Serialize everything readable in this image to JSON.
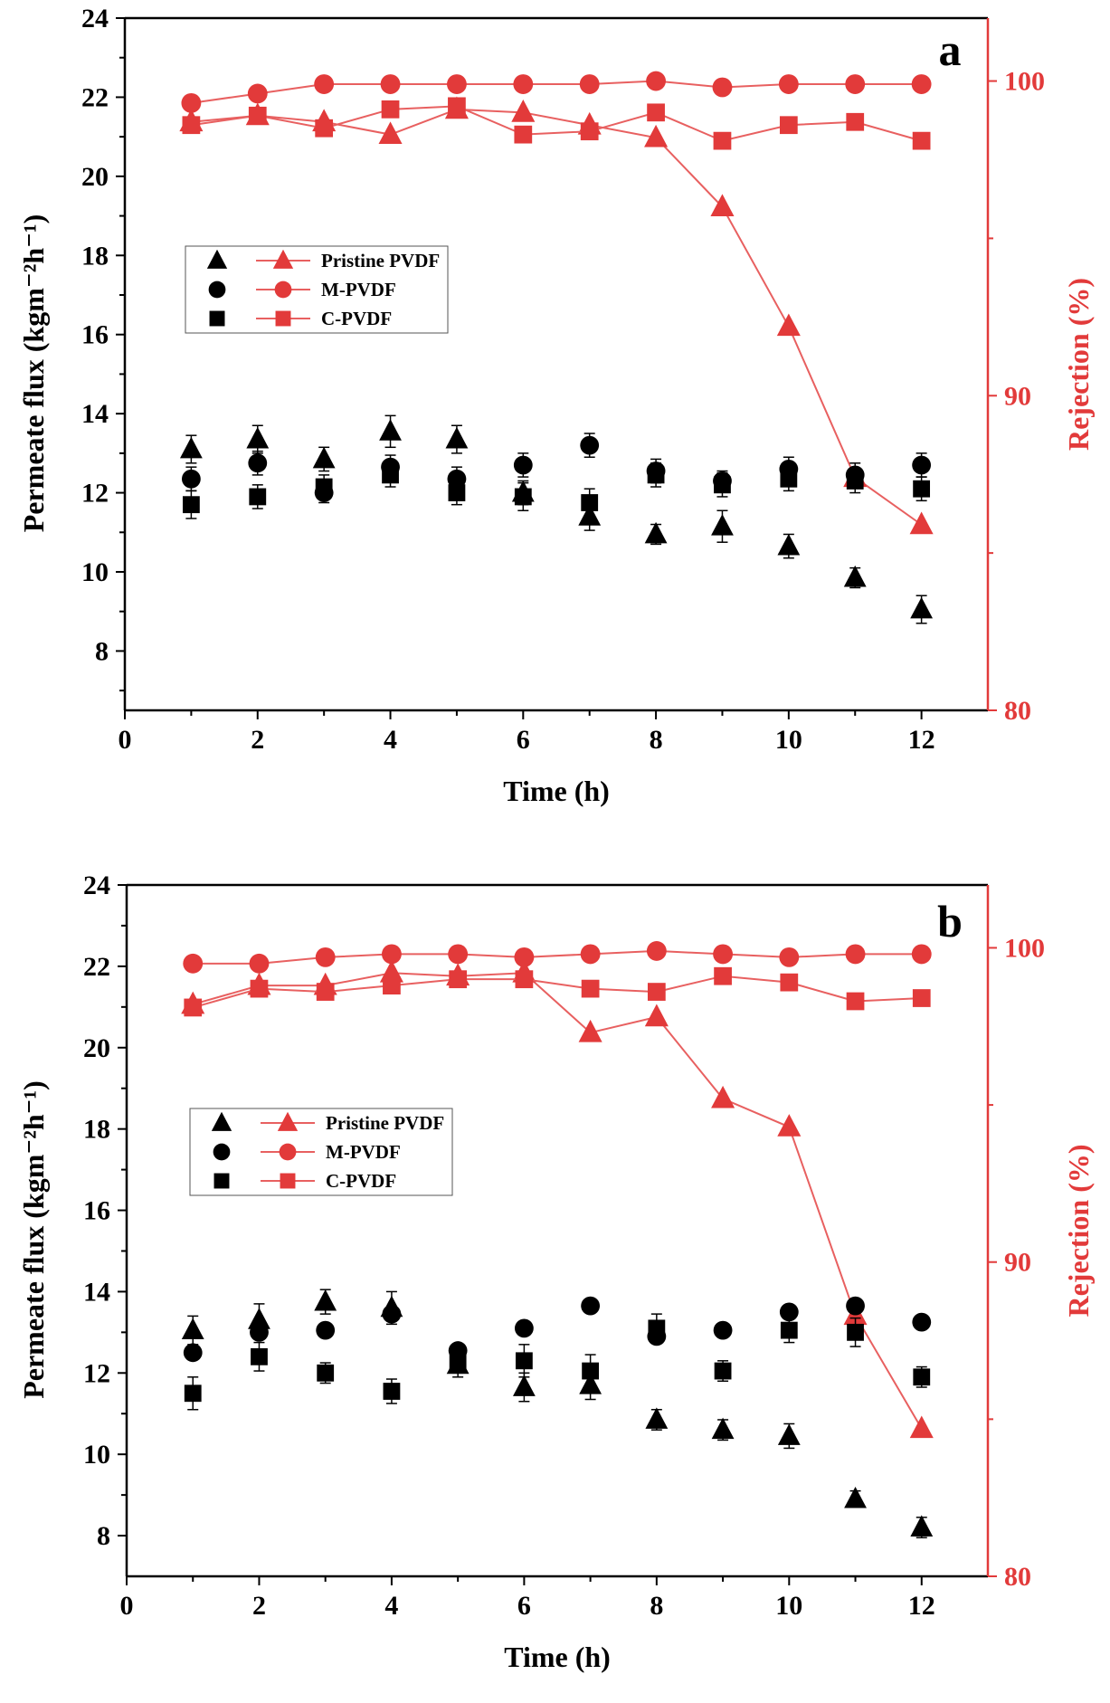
{
  "colors": {
    "black": "#000000",
    "red": "#e23a3a",
    "red_line": "#e86060"
  },
  "chart_data": [
    {
      "type": "scatter",
      "panel_label": "a",
      "xlabel": "Time (h)",
      "ylabel_left": "Permeate flux (kgm⁻²h⁻¹)",
      "ylabel_right": "Rejection (%)",
      "xlim": [
        0,
        13
      ],
      "ylim_left": [
        6.5,
        24
      ],
      "ylim_right": [
        80,
        102
      ],
      "xticks": [
        "0",
        "2",
        "4",
        "6",
        "8",
        "10",
        "12"
      ],
      "yticks_left": [
        "8",
        "10",
        "12",
        "14",
        "16",
        "18",
        "20",
        "22",
        "24"
      ],
      "yticks_right": [
        "80",
        "90",
        "100"
      ],
      "legend": [
        "Pristine PVDF",
        "M-PVDF",
        "C-PVDF"
      ],
      "x": [
        1,
        2,
        3,
        4,
        5,
        6,
        7,
        8,
        9,
        10,
        11,
        12
      ],
      "flux": [
        {
          "name": "Pristine PVDF",
          "marker": "triangle",
          "values": [
            13.1,
            13.35,
            12.85,
            13.55,
            13.35,
            12.0,
            11.4,
            10.95,
            11.15,
            10.65,
            9.85,
            9.05
          ],
          "errors": [
            0.35,
            0.35,
            0.3,
            0.4,
            0.35,
            0.3,
            0.35,
            0.25,
            0.4,
            0.3,
            0.25,
            0.35
          ]
        },
        {
          "name": "M-PVDF",
          "marker": "circle",
          "values": [
            12.35,
            12.75,
            12.0,
            12.65,
            12.35,
            12.7,
            13.2,
            12.55,
            12.3,
            12.6,
            12.45,
            12.7
          ],
          "errors": [
            0.3,
            0.3,
            0.25,
            0.3,
            0.3,
            0.3,
            0.3,
            0.3,
            0.25,
            0.3,
            0.3,
            0.3
          ]
        },
        {
          "name": "C-PVDF",
          "marker": "square",
          "values": [
            11.7,
            11.9,
            12.15,
            12.45,
            12.0,
            11.9,
            11.75,
            12.45,
            12.2,
            12.35,
            12.3,
            12.1
          ],
          "errors": [
            0.35,
            0.3,
            0.3,
            0.3,
            0.3,
            0.35,
            0.35,
            0.3,
            0.3,
            0.3,
            0.3,
            0.3
          ]
        }
      ],
      "rejection": [
        {
          "name": "Pristine PVDF",
          "marker": "triangle",
          "values": [
            98.7,
            98.9,
            98.7,
            98.3,
            99.1,
            99.0,
            98.6,
            98.2,
            96.0,
            92.2,
            87.4,
            85.9
          ]
        },
        {
          "name": "M-PVDF",
          "marker": "circle",
          "values": [
            99.3,
            99.6,
            99.9,
            99.9,
            99.9,
            99.9,
            99.9,
            100.0,
            99.8,
            99.9,
            99.9,
            99.9
          ]
        },
        {
          "name": "C-PVDF",
          "marker": "square",
          "values": [
            98.6,
            98.9,
            98.5,
            99.1,
            99.2,
            98.3,
            98.4,
            99.0,
            98.1,
            98.6,
            98.7,
            98.1
          ]
        }
      ]
    },
    {
      "type": "scatter",
      "panel_label": "b",
      "xlabel": "Time (h)",
      "ylabel_left": "Permeate flux (kgm⁻²h⁻¹)",
      "ylabel_right": "Rejection (%)",
      "xlim": [
        0,
        13
      ],
      "ylim_left": [
        7,
        24
      ],
      "ylim_right": [
        80,
        102
      ],
      "xticks": [
        "0",
        "2",
        "4",
        "6",
        "8",
        "10",
        "12"
      ],
      "yticks_left": [
        "8",
        "10",
        "12",
        "14",
        "16",
        "18",
        "20",
        "22",
        "24"
      ],
      "yticks_right": [
        "80",
        "90",
        "100"
      ],
      "legend": [
        "Pristine PVDF",
        "M-PVDF",
        "C-PVDF"
      ],
      "x": [
        1,
        2,
        3,
        4,
        5,
        6,
        7,
        8,
        9,
        10,
        11,
        12
      ],
      "flux": [
        {
          "name": "Pristine PVDF",
          "marker": "triangle",
          "values": [
            13.05,
            13.3,
            13.75,
            13.6,
            12.2,
            11.65,
            11.7,
            10.85,
            10.6,
            10.45,
            8.9,
            8.2
          ],
          "errors": [
            0.35,
            0.4,
            0.3,
            0.4,
            0.3,
            0.35,
            0.35,
            0.25,
            0.25,
            0.3,
            0.2,
            0.25
          ]
        },
        {
          "name": "M-PVDF",
          "marker": "circle",
          "values": [
            12.5,
            13.0,
            13.05,
            13.45,
            12.55,
            13.1,
            13.65,
            12.9,
            13.05,
            13.5,
            13.65,
            13.25
          ]
        },
        {
          "name": "C-PVDF",
          "marker": "square",
          "values": [
            11.5,
            12.4,
            12.0,
            11.55,
            12.3,
            12.3,
            12.05,
            13.1,
            12.05,
            13.05,
            13.0,
            11.9
          ],
          "errors": [
            0.4,
            0.35,
            0.25,
            0.3,
            0.3,
            0.4,
            0.4,
            0.35,
            0.25,
            0.3,
            0.35,
            0.25
          ]
        }
      ],
      "rejection": [
        {
          "name": "Pristine PVDF",
          "marker": "triangle",
          "values": [
            98.2,
            98.8,
            98.8,
            99.2,
            99.1,
            99.2,
            97.3,
            97.8,
            95.2,
            94.3,
            88.3,
            84.7
          ]
        },
        {
          "name": "M-PVDF",
          "marker": "circle",
          "values": [
            99.5,
            99.5,
            99.7,
            99.8,
            99.8,
            99.7,
            99.8,
            99.9,
            99.8,
            99.7,
            99.8,
            99.8
          ]
        },
        {
          "name": "C-PVDF",
          "marker": "square",
          "values": [
            98.1,
            98.7,
            98.6,
            98.8,
            99.0,
            99.0,
            98.7,
            98.6,
            99.1,
            98.9,
            98.3,
            98.4
          ]
        }
      ]
    }
  ]
}
